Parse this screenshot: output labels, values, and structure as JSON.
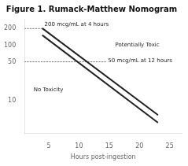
{
  "chart_data": {
    "type": "line",
    "title": "Figure 1. Rumack-Matthew Nomogram",
    "xlabel": "Hours post-ingestion",
    "log": "y",
    "grid": false,
    "xlim": [
      1,
      27
    ],
    "xticks": [
      5,
      10,
      15,
      20,
      25
    ],
    "ylim": [
      2.5,
      300
    ],
    "yticks": [
      10,
      50,
      100,
      200
    ],
    "series": [
      {
        "color": "#222222",
        "line_style": "solid",
        "x": [
          4,
          23
        ],
        "values": [
          200,
          5.5
        ]
      },
      {
        "color": "#222222",
        "line_style": "solid",
        "x": [
          4,
          23
        ],
        "values": [
          150,
          4.0
        ]
      },
      {
        "color": "#777777",
        "line_style": "dotted",
        "x": [
          1,
          4
        ],
        "values": [
          200,
          200
        ]
      },
      {
        "color": "#777777",
        "line_style": "dotted",
        "x": [
          1,
          14.5
        ],
        "values": [
          50,
          50
        ]
      }
    ],
    "annotations": [
      {
        "text": "200 mcg/mL at 4 hours",
        "x": 4.3,
        "y": 210
      },
      {
        "text": "50 mcg/mL at 12 hours",
        "x": 14.8,
        "y": 47
      },
      {
        "text": "Potentially Toxic",
        "x": 16,
        "y": 90
      },
      {
        "text": "No Toxicity",
        "x": 2.5,
        "y": 14
      }
    ]
  }
}
